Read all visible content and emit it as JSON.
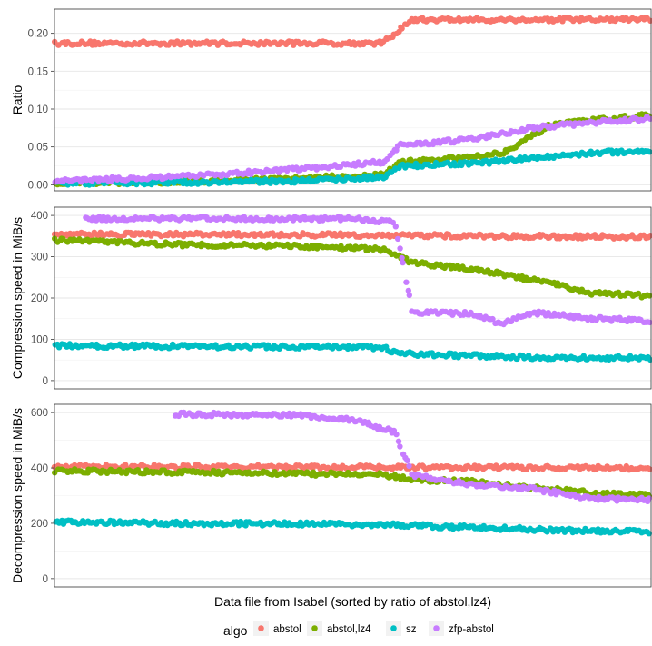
{
  "chart_data": {
    "type": "scatter",
    "xlabel": "Data file from Isabel (sorted by ratio of abstol,lz4)",
    "legend": {
      "title": "algo",
      "placement": "bottom",
      "entries": [
        {
          "name": "abstol",
          "color": "#F8766D"
        },
        {
          "name": "abstol,lz4",
          "color": "#7CAE00"
        },
        {
          "name": "sz",
          "color": "#00BFC4"
        },
        {
          "name": "zfp-abstol",
          "color": "#C77CFF"
        }
      ]
    },
    "x_range": [
      0,
      1
    ],
    "panels": [
      {
        "ylabel": "Ratio",
        "ylim": [
          -0.008,
          0.232
        ],
        "yticks": [
          0.0,
          0.05,
          0.1,
          0.15,
          0.2
        ],
        "yticklabels": [
          "0.00",
          "0.05",
          "0.10",
          "0.15",
          "0.20"
        ],
        "series": [
          {
            "name": "abstol",
            "points": [
              [
                0.0,
                0.187
              ],
              [
                0.1,
                0.187
              ],
              [
                0.2,
                0.187
              ],
              [
                0.3,
                0.187
              ],
              [
                0.4,
                0.187
              ],
              [
                0.5,
                0.187
              ],
              [
                0.55,
                0.187
              ],
              [
                0.6,
                0.218
              ],
              [
                0.65,
                0.218
              ],
              [
                0.7,
                0.218
              ],
              [
                0.75,
                0.218
              ],
              [
                0.8,
                0.218
              ],
              [
                0.9,
                0.218
              ],
              [
                1.0,
                0.218
              ]
            ]
          },
          {
            "name": "abstol,lz4",
            "points": [
              [
                0.0,
                0.002
              ],
              [
                0.2,
                0.004
              ],
              [
                0.4,
                0.008
              ],
              [
                0.55,
                0.013
              ],
              [
                0.58,
                0.03
              ],
              [
                0.65,
                0.033
              ],
              [
                0.75,
                0.042
              ],
              [
                0.78,
                0.055
              ],
              [
                0.83,
                0.078
              ],
              [
                0.9,
                0.085
              ],
              [
                1.0,
                0.092
              ]
            ]
          },
          {
            "name": "sz",
            "points": [
              [
                0.0,
                0.002
              ],
              [
                0.2,
                0.003
              ],
              [
                0.4,
                0.005
              ],
              [
                0.55,
                0.01
              ],
              [
                0.58,
                0.025
              ],
              [
                0.7,
                0.028
              ],
              [
                0.8,
                0.035
              ],
              [
                0.9,
                0.042
              ],
              [
                1.0,
                0.045
              ]
            ]
          },
          {
            "name": "zfp-abstol",
            "points": [
              [
                0.0,
                0.005
              ],
              [
                0.2,
                0.01
              ],
              [
                0.4,
                0.02
              ],
              [
                0.55,
                0.03
              ],
              [
                0.58,
                0.052
              ],
              [
                0.7,
                0.06
              ],
              [
                0.8,
                0.075
              ],
              [
                0.9,
                0.082
              ],
              [
                1.0,
                0.088
              ]
            ]
          }
        ]
      },
      {
        "ylabel": "Compression speed in MiB/s",
        "ylim": [
          -20,
          420
        ],
        "yticks": [
          0,
          100,
          200,
          300,
          400
        ],
        "yticklabels": [
          "0",
          "100",
          "200",
          "300",
          "400"
        ],
        "series": [
          {
            "name": "abstol",
            "points": [
              [
                0.0,
                355
              ],
              [
                0.2,
                354
              ],
              [
                0.4,
                353
              ],
              [
                0.55,
                352
              ],
              [
                0.7,
                350
              ],
              [
                0.85,
                349
              ],
              [
                1.0,
                348
              ]
            ]
          },
          {
            "name": "abstol,lz4",
            "points": [
              [
                0.0,
                340
              ],
              [
                0.2,
                330
              ],
              [
                0.4,
                325
              ],
              [
                0.55,
                318
              ],
              [
                0.6,
                285
              ],
              [
                0.7,
                270
              ],
              [
                0.75,
                258
              ],
              [
                0.85,
                230
              ],
              [
                0.9,
                212
              ],
              [
                1.0,
                205
              ]
            ]
          },
          {
            "name": "sz",
            "points": [
              [
                0.0,
                85
              ],
              [
                0.2,
                83
              ],
              [
                0.4,
                82
              ],
              [
                0.55,
                80
              ],
              [
                0.58,
                65
              ],
              [
                0.7,
                60
              ],
              [
                0.85,
                55
              ],
              [
                1.0,
                55
              ]
            ]
          },
          {
            "name": "zfp-abstol",
            "points": [
              [
                0.05,
                392
              ],
              [
                0.2,
                393
              ],
              [
                0.35,
                392
              ],
              [
                0.5,
                392
              ],
              [
                0.57,
                385
              ],
              [
                0.6,
                165
              ],
              [
                0.7,
                162
              ],
              [
                0.75,
                138
              ],
              [
                0.8,
                165
              ],
              [
                0.9,
                150
              ],
              [
                1.0,
                145
              ]
            ]
          }
        ]
      },
      {
        "ylabel": "Decompression speed in MiB/s",
        "ylim": [
          -30,
          630
        ],
        "yticks": [
          0,
          200,
          400,
          600
        ],
        "yticklabels": [
          "0",
          "200",
          "400",
          "600"
        ],
        "series": [
          {
            "name": "abstol",
            "points": [
              [
                0.0,
                405
              ],
              [
                0.2,
                404
              ],
              [
                0.4,
                403
              ],
              [
                0.6,
                402
              ],
              [
                0.8,
                401
              ],
              [
                1.0,
                400
              ]
            ]
          },
          {
            "name": "abstol,lz4",
            "points": [
              [
                0.0,
                390
              ],
              [
                0.2,
                385
              ],
              [
                0.4,
                380
              ],
              [
                0.55,
                375
              ],
              [
                0.6,
                358
              ],
              [
                0.7,
                350
              ],
              [
                0.8,
                328
              ],
              [
                0.9,
                310
              ],
              [
                1.0,
                300
              ]
            ]
          },
          {
            "name": "sz",
            "points": [
              [
                0.0,
                205
              ],
              [
                0.2,
                200
              ],
              [
                0.4,
                198
              ],
              [
                0.55,
                195
              ],
              [
                0.7,
                185
              ],
              [
                0.85,
                175
              ],
              [
                1.0,
                170
              ]
            ]
          },
          {
            "name": "zfp-abstol",
            "points": [
              [
                0.2,
                595
              ],
              [
                0.3,
                592
              ],
              [
                0.4,
                590
              ],
              [
                0.5,
                575
              ],
              [
                0.57,
                530
              ],
              [
                0.6,
                375
              ],
              [
                0.7,
                340
              ],
              [
                0.8,
                325
              ],
              [
                0.9,
                290
              ],
              [
                1.0,
                285
              ]
            ]
          }
        ]
      }
    ]
  }
}
